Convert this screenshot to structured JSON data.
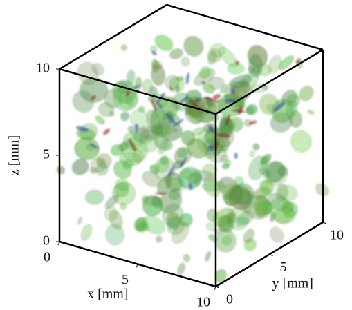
{
  "chart_data": {
    "type": "volume-3d",
    "xlabel": "x [mm]",
    "ylabel": "y [mm]",
    "zlabel": "z [mm]",
    "xlim": [
      0,
      10
    ],
    "ylim": [
      0,
      10
    ],
    "zlim": [
      0,
      10
    ],
    "xticks": [
      0,
      5,
      10
    ],
    "yticks": [
      0,
      5,
      10
    ],
    "zticks": [
      0,
      5,
      10
    ]
  }
}
